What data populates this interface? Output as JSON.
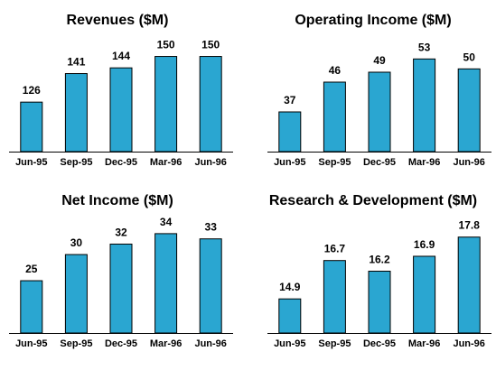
{
  "chart_data": [
    {
      "type": "bar",
      "title": "Revenues ($M)",
      "categories": [
        "Jun-95",
        "Sep-95",
        "Dec-95",
        "Mar-96",
        "Jun-96"
      ],
      "values": [
        126,
        141,
        144,
        150,
        150
      ],
      "labels": [
        "126",
        "141",
        "144",
        "150",
        "150"
      ],
      "ylim": [
        100,
        155
      ],
      "bar_color": "#2aa6d1"
    },
    {
      "type": "bar",
      "title": "Operating Income ($M)",
      "categories": [
        "Jun-95",
        "Sep-95",
        "Dec-95",
        "Mar-96",
        "Jun-96"
      ],
      "values": [
        37,
        46,
        49,
        53,
        50
      ],
      "labels": [
        "37",
        "46",
        "49",
        "53",
        "50"
      ],
      "ylim": [
        25,
        55
      ],
      "bar_color": "#2aa6d1"
    },
    {
      "type": "bar",
      "title": "Net Income ($M)",
      "categories": [
        "Jun-95",
        "Sep-95",
        "Dec-95",
        "Mar-96",
        "Jun-96"
      ],
      "values": [
        25,
        30,
        32,
        34,
        33
      ],
      "labels": [
        "25",
        "30",
        "32",
        "34",
        "33"
      ],
      "ylim": [
        15,
        34.5
      ],
      "bar_color": "#2aa6d1"
    },
    {
      "type": "bar",
      "title": "Research & Development ($M)",
      "categories": [
        "Jun-95",
        "Sep-95",
        "Dec-95",
        "Mar-96",
        "Jun-96"
      ],
      "values": [
        14.9,
        16.7,
        16.2,
        16.9,
        17.8
      ],
      "labels": [
        "14.9",
        "16.7",
        "16.2",
        "16.9",
        "17.8"
      ],
      "ylim": [
        13.3,
        18.0
      ],
      "bar_color": "#2aa6d1"
    }
  ]
}
